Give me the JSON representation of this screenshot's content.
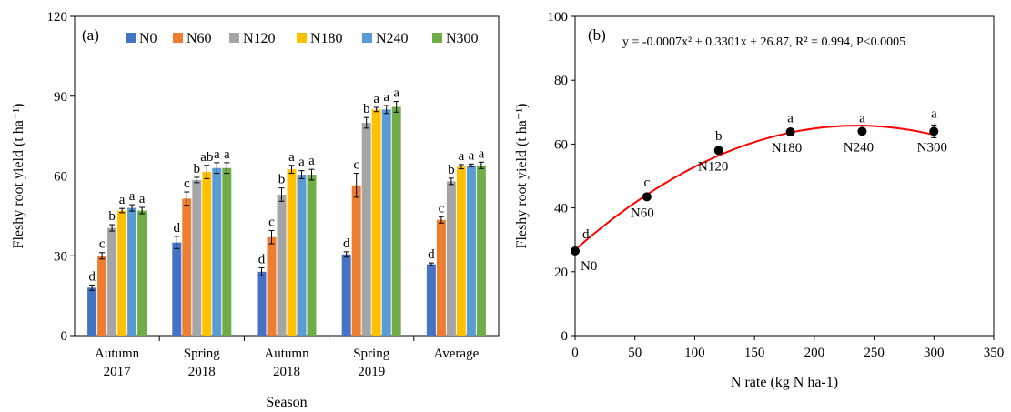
{
  "chart_data": [
    {
      "type": "bar",
      "panel_label": "(a)",
      "xlabel": "Season",
      "ylabel": "Fleshy root yield (t ha⁻¹)",
      "ylim": [
        0,
        120
      ],
      "yticks": [
        "0",
        "30",
        "60",
        "90",
        "120"
      ],
      "categories": [
        [
          "Autumn",
          "2017"
        ],
        [
          "Spring",
          "2018"
        ],
        [
          "Autumn",
          "2018"
        ],
        [
          "Spring",
          "2019"
        ],
        [
          "Average"
        ]
      ],
      "legend_placement": "top",
      "series": [
        {
          "name": "N0",
          "color": "#4472C4",
          "values": [
            18.0,
            35.0,
            24.0,
            30.5,
            26.8
          ],
          "errors": [
            1.0,
            2.3,
            1.5,
            1.0,
            0.5
          ],
          "letters": [
            "d",
            "d",
            "d",
            "d",
            "d"
          ]
        },
        {
          "name": "N60",
          "color": "#ED7D31",
          "values": [
            30.0,
            51.5,
            37.0,
            56.5,
            43.5
          ],
          "errors": [
            1.2,
            2.5,
            2.5,
            4.5,
            1.2
          ],
          "letters": [
            "c",
            "c",
            "c",
            "c",
            "c"
          ]
        },
        {
          "name": "N120",
          "color": "#A5A5A5",
          "values": [
            40.5,
            58.5,
            53.0,
            80.0,
            58.0
          ],
          "errors": [
            1.2,
            1.0,
            2.5,
            2.0,
            1.2
          ],
          "letters": [
            "b",
            "b",
            "b",
            "b",
            "b"
          ]
        },
        {
          "name": "N180",
          "color": "#FFC000",
          "values": [
            47.0,
            61.5,
            62.5,
            85.0,
            63.5
          ],
          "errors": [
            0.8,
            2.5,
            1.5,
            0.8,
            0.8
          ],
          "letters": [
            "a",
            "ab",
            "a",
            "a",
            "a"
          ]
        },
        {
          "name": "N240",
          "color": "#5B9BD5",
          "values": [
            48.0,
            63.0,
            60.5,
            85.0,
            64.0
          ],
          "errors": [
            1.2,
            2.0,
            1.5,
            1.5,
            0.5
          ],
          "letters": [
            "a",
            "a",
            "a",
            "a",
            "a"
          ]
        },
        {
          "name": "N300",
          "color": "#70AD47",
          "values": [
            47.0,
            63.0,
            60.5,
            86.0,
            64.0
          ],
          "errors": [
            1.2,
            2.0,
            2.0,
            2.0,
            1.2
          ],
          "letters": [
            "a",
            "a",
            "a",
            "a",
            "a"
          ]
        }
      ]
    },
    {
      "type": "scatter",
      "panel_label": "(b)",
      "xlabel": "N rate (kg N ha-1)",
      "ylabel": "Fleshy root yield (t ha⁻¹)",
      "xlim": [
        0,
        350
      ],
      "ylim": [
        0,
        100
      ],
      "xticks": [
        "0",
        "50",
        "100",
        "150",
        "200",
        "250",
        "300",
        "350"
      ],
      "yticks": [
        "0",
        "20",
        "40",
        "60",
        "80",
        "100"
      ],
      "equation": "y = -0.0007x² + 0.3301x + 26.87, R² = 0.994, P<0.0005",
      "fit": {
        "a": -0.0007,
        "b": 0.3301,
        "c": 26.87,
        "color": "#FF0000"
      },
      "points": [
        {
          "x": 0,
          "y": 26.5,
          "err": 0.8,
          "label": "N0",
          "letter": "d"
        },
        {
          "x": 60,
          "y": 43.5,
          "err": 1.0,
          "label": "N60",
          "letter": "c"
        },
        {
          "x": 120,
          "y": 58.0,
          "err": 1.0,
          "label": "N120",
          "letter": "b"
        },
        {
          "x": 180,
          "y": 63.8,
          "err": 0.8,
          "label": "N180",
          "letter": "a"
        },
        {
          "x": 240,
          "y": 64.0,
          "err": 0.6,
          "label": "N240",
          "letter": "a"
        },
        {
          "x": 300,
          "y": 64.0,
          "err": 2.0,
          "label": "N300",
          "letter": "a"
        }
      ]
    }
  ]
}
